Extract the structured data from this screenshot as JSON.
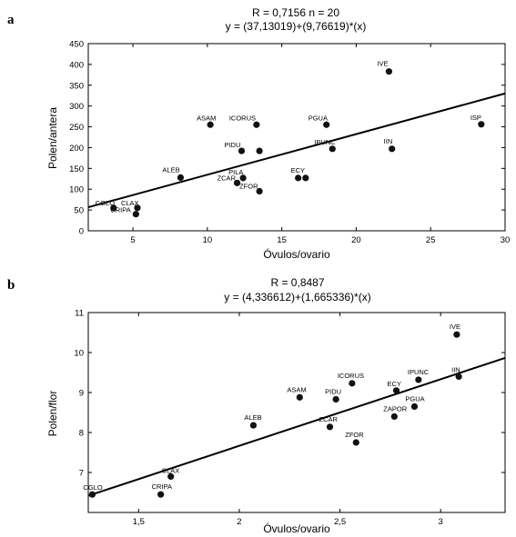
{
  "chart_data": [
    {
      "type": "scatter",
      "panel": "a",
      "title_line1": "R = 0,7156 n = 20",
      "title_line2": "y = (37,13019)+(9,76619)*(x)",
      "xlabel": "Óvulos/ovario",
      "ylabel": "Polen/antera",
      "xlim": [
        2,
        30
      ],
      "ylim": [
        0,
        450
      ],
      "xticks": [
        5,
        10,
        15,
        20,
        25,
        30
      ],
      "yticks": [
        0,
        50,
        100,
        150,
        200,
        250,
        300,
        350,
        400,
        450
      ],
      "fit": {
        "intercept": 37.13019,
        "slope": 9.76619
      },
      "points": [
        {
          "label": "CGLO",
          "x": 3.7,
          "y": 55
        },
        {
          "label": "CLAX",
          "x": 5.3,
          "y": 55
        },
        {
          "label": "CRIPA",
          "x": 5.2,
          "y": 40
        },
        {
          "label": "ALEB",
          "x": 8.2,
          "y": 128
        },
        {
          "label": "ASAM",
          "x": 10.2,
          "y": 255
        },
        {
          "label": "ICORUS",
          "x": 13.3,
          "y": 255
        },
        {
          "label": "PIDU",
          "x": 12.3,
          "y": 192
        },
        {
          "label": "",
          "x": 13.5,
          "y": 192
        },
        {
          "label": "PILA",
          "x": 12.4,
          "y": 127
        },
        {
          "label": "ZCAR",
          "x": 12.0,
          "y": 115
        },
        {
          "label": "ZFOR",
          "x": 13.5,
          "y": 95
        },
        {
          "label": "ECY",
          "x": 16.1,
          "y": 127
        },
        {
          "label": "",
          "x": 16.6,
          "y": 127
        },
        {
          "label": "PGUA",
          "x": 18.0,
          "y": 255
        },
        {
          "label": "IPUNC",
          "x": 18.4,
          "y": 197
        },
        {
          "label": "IVE",
          "x": 22.2,
          "y": 383
        },
        {
          "label": "IIN",
          "x": 22.4,
          "y": 197
        },
        {
          "label": "ISP",
          "x": 28.4,
          "y": 256
        }
      ]
    },
    {
      "type": "scatter",
      "panel": "b",
      "title_line1": "R = 0,8487",
      "title_line2": "y = (4,336612)+(1,665336)*(x)",
      "xlabel": "Óvulos/ovario",
      "ylabel": "Polen/flor",
      "xlim": [
        1.25,
        3.32
      ],
      "ylim": [
        6.0,
        11.0
      ],
      "xticks": [
        1.5,
        2,
        2.5,
        3
      ],
      "xtick_labels": [
        "1,5",
        "2",
        "2,5",
        "3"
      ],
      "yticks": [
        7,
        8,
        9,
        10,
        11
      ],
      "fit": {
        "intercept": 4.336612,
        "slope": 1.665336
      },
      "points": [
        {
          "label": "CGLO",
          "x": 1.27,
          "y": 6.45
        },
        {
          "label": "CRIPA",
          "x": 1.61,
          "y": 6.45
        },
        {
          "label": "CLAX",
          "x": 1.66,
          "y": 6.9
        },
        {
          "label": "ALEB",
          "x": 2.07,
          "y": 8.18
        },
        {
          "label": "ASAM",
          "x": 2.3,
          "y": 8.88
        },
        {
          "label": "PIDU",
          "x": 2.48,
          "y": 8.83
        },
        {
          "label": "ICORUS",
          "x": 2.56,
          "y": 9.23
        },
        {
          "label": "ZCAR",
          "x": 2.45,
          "y": 8.14
        },
        {
          "label": "ZFOR",
          "x": 2.58,
          "y": 7.75
        },
        {
          "label": "ZAPOR",
          "x": 2.77,
          "y": 8.4
        },
        {
          "label": "ECY",
          "x": 2.78,
          "y": 9.05
        },
        {
          "label": "PGUA",
          "x": 2.87,
          "y": 8.65
        },
        {
          "label": "IPUNC",
          "x": 2.89,
          "y": 9.32
        },
        {
          "label": "IIN",
          "x": 3.09,
          "y": 9.4
        },
        {
          "label": "IVE",
          "x": 3.08,
          "y": 10.45
        }
      ]
    }
  ]
}
